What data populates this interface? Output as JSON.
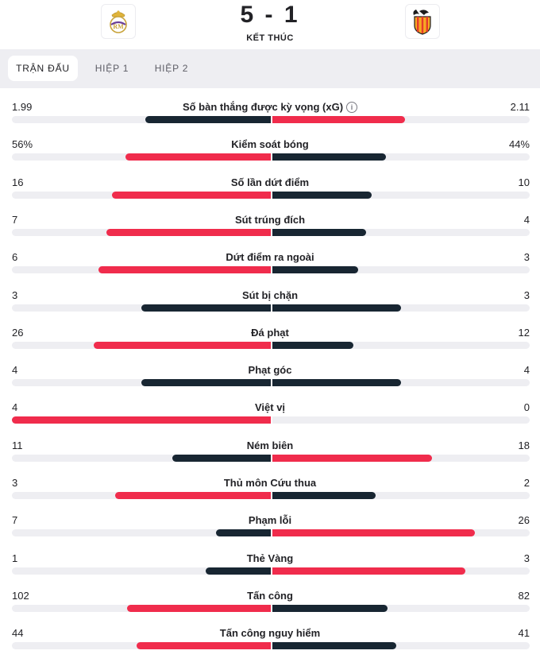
{
  "match": {
    "score": "5 - 1",
    "status": "KẾT THÚC",
    "home_logo": "real-madrid-crest",
    "away_logo": "valencia-crest"
  },
  "tabs": [
    {
      "label": "TRẬN ĐẤU",
      "active": true
    },
    {
      "label": "HIỆP 1",
      "active": false
    },
    {
      "label": "HIỆP 2",
      "active": false
    }
  ],
  "colors": {
    "leader": "#f02c4c",
    "trailer": "#182632",
    "track": "#eeeef2"
  },
  "stats": [
    {
      "label": "Số bàn thắng được kỳ vọng (xG)",
      "home": "1.99",
      "away": "2.11",
      "info": true,
      "home_share": 0.485,
      "away_share": 0.515,
      "leader": "away"
    },
    {
      "label": "Kiểm soát bóng",
      "home": "56%",
      "away": "44%",
      "home_share": 0.56,
      "away_share": 0.44,
      "leader": "home"
    },
    {
      "label": "Số lần dứt điểm",
      "home": "16",
      "away": "10",
      "home_share": 0.615,
      "away_share": 0.385,
      "leader": "home"
    },
    {
      "label": "Sút trúng đích",
      "home": "7",
      "away": "4",
      "home_share": 0.636,
      "away_share": 0.364,
      "leader": "home"
    },
    {
      "label": "Dứt điểm ra ngoài",
      "home": "6",
      "away": "3",
      "home_share": 0.667,
      "away_share": 0.333,
      "leader": "home"
    },
    {
      "label": "Sút bị chặn",
      "home": "3",
      "away": "3",
      "home_share": 0.5,
      "away_share": 0.5,
      "leader": "none"
    },
    {
      "label": "Đá phạt",
      "home": "26",
      "away": "12",
      "home_share": 0.684,
      "away_share": 0.316,
      "leader": "home"
    },
    {
      "label": "Phạt góc",
      "home": "4",
      "away": "4",
      "home_share": 0.5,
      "away_share": 0.5,
      "leader": "none"
    },
    {
      "label": "Việt vị",
      "home": "4",
      "away": "0",
      "home_share": 1.0,
      "away_share": 0.0,
      "leader": "home"
    },
    {
      "label": "Ném biên",
      "home": "11",
      "away": "18",
      "home_share": 0.379,
      "away_share": 0.621,
      "leader": "away"
    },
    {
      "label": "Thủ môn Cứu thua",
      "home": "3",
      "away": "2",
      "home_share": 0.6,
      "away_share": 0.4,
      "leader": "home"
    },
    {
      "label": "Phạm lỗi",
      "home": "7",
      "away": "26",
      "home_share": 0.212,
      "away_share": 0.788,
      "leader": "away"
    },
    {
      "label": "Thẻ Vàng",
      "home": "1",
      "away": "3",
      "home_share": 0.25,
      "away_share": 0.75,
      "leader": "away"
    },
    {
      "label": "Tấn công",
      "home": "102",
      "away": "82",
      "home_share": 0.554,
      "away_share": 0.446,
      "leader": "home"
    },
    {
      "label": "Tấn công nguy hiểm",
      "home": "44",
      "away": "41",
      "home_share": 0.518,
      "away_share": 0.482,
      "leader": "home"
    }
  ]
}
